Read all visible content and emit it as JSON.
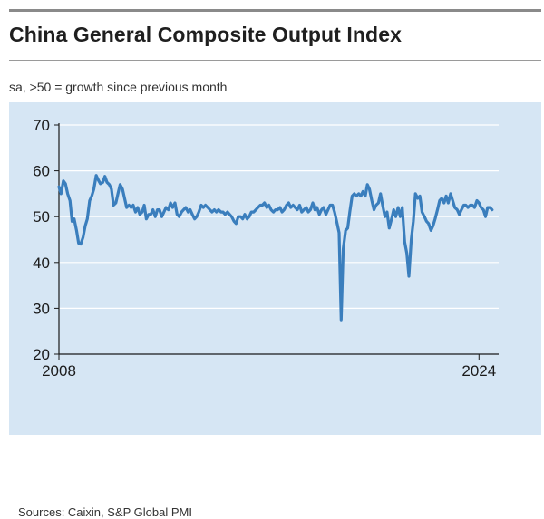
{
  "header": {
    "title": "China General Composite Output Index",
    "subtitle": "sa, >50 = growth since previous month"
  },
  "footer": {
    "source": "Sources: Caixin, S&P Global PMI"
  },
  "colors": {
    "line": "#3a7ebd",
    "panel": "#d6e6f4",
    "axis": "#1a1a1a",
    "grid": "#ffffff"
  },
  "chart_data": {
    "type": "line",
    "title": "China General Composite Output Index",
    "subtitle": "sa, >50 = growth since previous month",
    "xlabel": "",
    "ylabel": "",
    "ylim": [
      20,
      70
    ],
    "yticks": [
      20,
      30,
      40,
      50,
      60,
      70
    ],
    "xlim": [
      2008,
      2024.75
    ],
    "xticks": [
      {
        "value": 2008,
        "label": "2008"
      },
      {
        "value": 2024,
        "label": "2024"
      }
    ],
    "grid": "horizontal",
    "legend": "none",
    "series": [
      {
        "color": "#3a7ebd",
        "points": [
          [
            2008.0,
            56.5
          ],
          [
            2008.08,
            55.0
          ],
          [
            2008.17,
            57.8
          ],
          [
            2008.25,
            57.2
          ],
          [
            2008.33,
            55.0
          ],
          [
            2008.42,
            53.5
          ],
          [
            2008.5,
            49.0
          ],
          [
            2008.58,
            49.5
          ],
          [
            2008.67,
            47.0
          ],
          [
            2008.75,
            44.2
          ],
          [
            2008.83,
            44.0
          ],
          [
            2008.92,
            45.5
          ],
          [
            2009.0,
            48.0
          ],
          [
            2009.08,
            49.5
          ],
          [
            2009.17,
            53.5
          ],
          [
            2009.25,
            54.5
          ],
          [
            2009.33,
            56.0
          ],
          [
            2009.42,
            59.0
          ],
          [
            2009.5,
            58.0
          ],
          [
            2009.58,
            57.2
          ],
          [
            2009.67,
            57.5
          ],
          [
            2009.75,
            58.8
          ],
          [
            2009.83,
            57.5
          ],
          [
            2009.92,
            57.0
          ],
          [
            2010.0,
            56.0
          ],
          [
            2010.08,
            52.5
          ],
          [
            2010.17,
            53.0
          ],
          [
            2010.25,
            55.0
          ],
          [
            2010.33,
            57.0
          ],
          [
            2010.42,
            56.0
          ],
          [
            2010.5,
            54.0
          ],
          [
            2010.58,
            52.0
          ],
          [
            2010.67,
            52.5
          ],
          [
            2010.75,
            52.0
          ],
          [
            2010.83,
            52.5
          ],
          [
            2010.92,
            51.0
          ],
          [
            2011.0,
            52.0
          ],
          [
            2011.08,
            50.5
          ],
          [
            2011.17,
            51.0
          ],
          [
            2011.25,
            52.5
          ],
          [
            2011.33,
            49.5
          ],
          [
            2011.42,
            50.5
          ],
          [
            2011.5,
            50.5
          ],
          [
            2011.58,
            51.5
          ],
          [
            2011.67,
            50.0
          ],
          [
            2011.75,
            51.5
          ],
          [
            2011.83,
            51.5
          ],
          [
            2011.92,
            50.0
          ],
          [
            2012.0,
            51.0
          ],
          [
            2012.08,
            52.0
          ],
          [
            2012.17,
            51.5
          ],
          [
            2012.25,
            53.0
          ],
          [
            2012.33,
            52.0
          ],
          [
            2012.42,
            53.0
          ],
          [
            2012.5,
            50.5
          ],
          [
            2012.58,
            50.0
          ],
          [
            2012.67,
            51.0
          ],
          [
            2012.75,
            51.5
          ],
          [
            2012.83,
            52.0
          ],
          [
            2012.92,
            51.0
          ],
          [
            2013.0,
            51.5
          ],
          [
            2013.08,
            50.5
          ],
          [
            2013.17,
            49.5
          ],
          [
            2013.25,
            50.0
          ],
          [
            2013.33,
            51.0
          ],
          [
            2013.42,
            52.5
          ],
          [
            2013.5,
            52.0
          ],
          [
            2013.58,
            52.5
          ],
          [
            2013.67,
            52.0
          ],
          [
            2013.75,
            51.5
          ],
          [
            2013.83,
            51.0
          ],
          [
            2013.92,
            51.5
          ],
          [
            2014.0,
            51.0
          ],
          [
            2014.08,
            51.5
          ],
          [
            2014.17,
            51.0
          ],
          [
            2014.25,
            51.0
          ],
          [
            2014.33,
            50.5
          ],
          [
            2014.42,
            51.0
          ],
          [
            2014.5,
            50.5
          ],
          [
            2014.58,
            50.0
          ],
          [
            2014.67,
            49.0
          ],
          [
            2014.75,
            48.5
          ],
          [
            2014.83,
            50.0
          ],
          [
            2014.92,
            50.0
          ],
          [
            2015.0,
            49.5
          ],
          [
            2015.08,
            50.5
          ],
          [
            2015.17,
            49.5
          ],
          [
            2015.25,
            50.0
          ],
          [
            2015.33,
            51.0
          ],
          [
            2015.42,
            51.0
          ],
          [
            2015.5,
            51.5
          ],
          [
            2015.58,
            52.0
          ],
          [
            2015.67,
            52.5
          ],
          [
            2015.75,
            52.5
          ],
          [
            2015.83,
            53.0
          ],
          [
            2015.92,
            52.0
          ],
          [
            2016.0,
            52.5
          ],
          [
            2016.08,
            51.5
          ],
          [
            2016.17,
            51.0
          ],
          [
            2016.25,
            51.5
          ],
          [
            2016.33,
            51.5
          ],
          [
            2016.42,
            52.0
          ],
          [
            2016.5,
            51.0
          ],
          [
            2016.58,
            51.5
          ],
          [
            2016.67,
            52.5
          ],
          [
            2016.75,
            53.0
          ],
          [
            2016.83,
            52.0
          ],
          [
            2016.92,
            52.5
          ],
          [
            2017.0,
            52.0
          ],
          [
            2017.08,
            51.5
          ],
          [
            2017.17,
            52.5
          ],
          [
            2017.25,
            51.0
          ],
          [
            2017.33,
            51.5
          ],
          [
            2017.42,
            52.0
          ],
          [
            2017.5,
            51.0
          ],
          [
            2017.58,
            51.5
          ],
          [
            2017.67,
            53.0
          ],
          [
            2017.75,
            51.5
          ],
          [
            2017.83,
            52.0
          ],
          [
            2017.92,
            50.5
          ],
          [
            2018.0,
            51.5
          ],
          [
            2018.08,
            52.0
          ],
          [
            2018.17,
            50.5
          ],
          [
            2018.25,
            51.5
          ],
          [
            2018.33,
            52.5
          ],
          [
            2018.42,
            52.5
          ],
          [
            2018.5,
            51.0
          ],
          [
            2018.58,
            49.0
          ],
          [
            2018.67,
            46.5
          ],
          [
            2018.75,
            27.5
          ],
          [
            2018.83,
            43.0
          ],
          [
            2018.92,
            47.0
          ],
          [
            2019.0,
            47.5
          ],
          [
            2019.08,
            51.0
          ],
          [
            2019.17,
            54.5
          ],
          [
            2019.25,
            55.0
          ],
          [
            2019.33,
            54.5
          ],
          [
            2019.42,
            55.0
          ],
          [
            2019.5,
            54.5
          ],
          [
            2019.58,
            55.5
          ],
          [
            2019.67,
            54.5
          ],
          [
            2019.75,
            57.0
          ],
          [
            2019.83,
            56.0
          ],
          [
            2019.92,
            53.5
          ],
          [
            2020.0,
            51.5
          ],
          [
            2020.08,
            52.5
          ],
          [
            2020.17,
            53.0
          ],
          [
            2020.25,
            55.0
          ],
          [
            2020.33,
            52.5
          ],
          [
            2020.42,
            50.0
          ],
          [
            2020.5,
            51.0
          ],
          [
            2020.58,
            47.5
          ],
          [
            2020.67,
            49.5
          ],
          [
            2020.75,
            51.5
          ],
          [
            2020.83,
            50.0
          ],
          [
            2020.92,
            52.0
          ],
          [
            2021.0,
            50.0
          ],
          [
            2021.08,
            52.0
          ],
          [
            2021.17,
            44.5
          ],
          [
            2021.25,
            42.0
          ],
          [
            2021.33,
            37.0
          ],
          [
            2021.42,
            45.0
          ],
          [
            2021.5,
            49.0
          ],
          [
            2021.58,
            55.0
          ],
          [
            2021.67,
            54.0
          ],
          [
            2021.75,
            54.5
          ],
          [
            2021.83,
            51.0
          ],
          [
            2021.92,
            50.0
          ],
          [
            2022.0,
            49.0
          ],
          [
            2022.08,
            48.5
          ],
          [
            2022.17,
            47.0
          ],
          [
            2022.25,
            48.0
          ],
          [
            2022.33,
            49.5
          ],
          [
            2022.42,
            51.5
          ],
          [
            2022.5,
            53.5
          ],
          [
            2022.58,
            54.0
          ],
          [
            2022.67,
            53.0
          ],
          [
            2022.75,
            54.5
          ],
          [
            2022.83,
            53.0
          ],
          [
            2022.92,
            55.0
          ],
          [
            2023.0,
            53.5
          ],
          [
            2023.08,
            52.0
          ],
          [
            2023.17,
            51.5
          ],
          [
            2023.25,
            50.5
          ],
          [
            2023.33,
            51.5
          ],
          [
            2023.42,
            52.5
          ],
          [
            2023.5,
            52.5
          ],
          [
            2023.58,
            52.0
          ],
          [
            2023.67,
            52.5
          ],
          [
            2023.75,
            52.5
          ],
          [
            2023.83,
            52.0
          ],
          [
            2023.92,
            53.5
          ],
          [
            2024.0,
            53.0
          ],
          [
            2024.08,
            52.0
          ],
          [
            2024.17,
            51.5
          ],
          [
            2024.25,
            50.0
          ],
          [
            2024.33,
            52.0
          ],
          [
            2024.42,
            52.0
          ],
          [
            2024.5,
            51.5
          ]
        ]
      }
    ]
  }
}
